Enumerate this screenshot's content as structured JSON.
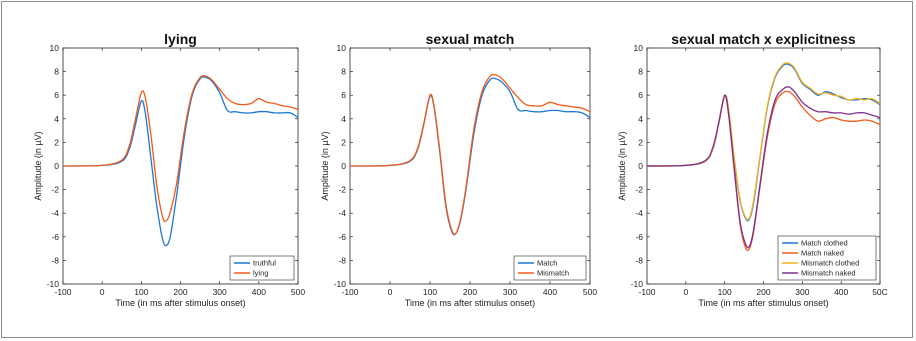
{
  "chart_data": [
    {
      "type": "line",
      "title": "lying",
      "xlabel": "Time (in ms after stimulus onset)",
      "ylabel": "Amplitude (in µV)",
      "xlim": [
        -100,
        500
      ],
      "ylim": [
        -10,
        10
      ],
      "xticks": [
        "-100",
        "0",
        "100",
        "200",
        "300",
        "400",
        "500"
      ],
      "yticks": [
        "-10",
        "-8",
        "-6",
        "-4",
        "-2",
        "0",
        "2",
        "4",
        "6",
        "8",
        "10"
      ],
      "legend_position": "bottom-right",
      "x": [
        -100,
        0,
        50,
        70,
        85,
        100,
        110,
        125,
        140,
        155,
        165,
        175,
        190,
        210,
        230,
        250,
        265,
        280,
        300,
        320,
        340,
        360,
        380,
        400,
        420,
        440,
        460,
        480,
        500
      ],
      "series": [
        {
          "name": "truthful",
          "color": "#1f77d4",
          "values": [
            0.0,
            0.05,
            0.4,
            1.5,
            3.5,
            5.5,
            4.5,
            0.5,
            -3.5,
            -6.3,
            -6.7,
            -5.8,
            -2.5,
            2.5,
            6.0,
            7.4,
            7.5,
            7.2,
            6.2,
            4.7,
            4.6,
            4.5,
            4.5,
            4.6,
            4.6,
            4.5,
            4.5,
            4.5,
            4.1
          ]
        },
        {
          "name": "lying",
          "color": "#f05a1a",
          "values": [
            0.0,
            0.05,
            0.5,
            1.8,
            4.0,
            6.2,
            5.8,
            2.5,
            -1.8,
            -4.4,
            -4.6,
            -3.8,
            -1.5,
            3.0,
            6.2,
            7.5,
            7.6,
            7.3,
            6.5,
            5.7,
            5.3,
            5.2,
            5.3,
            5.7,
            5.4,
            5.3,
            5.1,
            5.0,
            4.8
          ]
        }
      ]
    },
    {
      "type": "line",
      "title": "sexual match",
      "xlabel": "Time (in ms after stimulus onset)",
      "ylabel": "Amplitude (in µV)",
      "xlim": [
        -100,
        500
      ],
      "ylim": [
        -10,
        10
      ],
      "xticks": [
        "-100",
        "0",
        "100",
        "200",
        "300",
        "400",
        "500"
      ],
      "yticks": [
        "-10",
        "-8",
        "-6",
        "-4",
        "-2",
        "0",
        "2",
        "4",
        "6",
        "8",
        "10"
      ],
      "legend_position": "bottom-right",
      "x": [
        -100,
        0,
        50,
        70,
        85,
        100,
        110,
        125,
        140,
        155,
        165,
        175,
        190,
        210,
        230,
        250,
        265,
        280,
        300,
        320,
        340,
        360,
        380,
        400,
        420,
        440,
        460,
        480,
        500
      ],
      "series": [
        {
          "name": "Match",
          "color": "#1f77d4",
          "values": [
            0.0,
            0.05,
            0.4,
            1.5,
            3.6,
            5.9,
            5.0,
            1.0,
            -3.5,
            -5.6,
            -5.7,
            -4.8,
            -2.0,
            2.8,
            6.0,
            7.3,
            7.4,
            7.1,
            6.3,
            4.8,
            4.7,
            4.6,
            4.6,
            4.7,
            4.7,
            4.6,
            4.6,
            4.5,
            4.1
          ]
        },
        {
          "name": "Mismatch",
          "color": "#f05a1a",
          "values": [
            0.0,
            0.05,
            0.45,
            1.6,
            3.7,
            6.0,
            5.1,
            1.2,
            -3.3,
            -5.5,
            -5.7,
            -4.7,
            -1.8,
            3.2,
            6.3,
            7.6,
            7.7,
            7.4,
            6.6,
            5.8,
            5.2,
            5.1,
            5.1,
            5.4,
            5.2,
            5.1,
            5.0,
            4.9,
            4.6
          ]
        }
      ]
    },
    {
      "type": "line",
      "title": "sexual match x explicitness",
      "xlabel": "Time (in ms after stimulus onset)",
      "ylabel": "Amplitude (in µV)",
      "xlim": [
        -100,
        500
      ],
      "ylim": [
        -10,
        10
      ],
      "xticks": [
        "-100",
        "0",
        "100",
        "200",
        "300",
        "400",
        "50C"
      ],
      "yticks": [
        "-10",
        "-8",
        "-6",
        "-4",
        "-2",
        "0",
        "2",
        "4",
        "6",
        "8",
        "10"
      ],
      "legend_position": "bottom-right",
      "x": [
        -100,
        0,
        50,
        70,
        85,
        100,
        110,
        125,
        140,
        155,
        165,
        175,
        190,
        210,
        230,
        250,
        265,
        280,
        300,
        320,
        340,
        360,
        380,
        400,
        420,
        440,
        460,
        480,
        500
      ],
      "series": [
        {
          "name": "Match clothed",
          "color": "#1f77d4",
          "values": [
            0.0,
            0.05,
            0.4,
            1.5,
            3.6,
            5.9,
            4.8,
            0.5,
            -3.0,
            -4.5,
            -4.4,
            -3.0,
            0.5,
            5.0,
            7.5,
            8.5,
            8.6,
            8.2,
            7.0,
            6.5,
            6.0,
            6.3,
            6.1,
            5.8,
            5.6,
            5.6,
            5.7,
            5.6,
            5.2
          ]
        },
        {
          "name": "Match naked",
          "color": "#f05a1a",
          "values": [
            0.0,
            0.05,
            0.45,
            1.6,
            3.7,
            5.9,
            4.4,
            -0.5,
            -5.0,
            -7.0,
            -6.9,
            -5.5,
            -2.0,
            2.5,
            5.3,
            6.2,
            6.3,
            5.9,
            5.0,
            4.3,
            3.8,
            4.0,
            4.1,
            3.9,
            3.8,
            3.8,
            3.9,
            3.8,
            3.5
          ]
        },
        {
          "name": "Mismatch clothed",
          "color": "#f2b21b",
          "values": [
            0.0,
            0.05,
            0.4,
            1.5,
            3.6,
            5.9,
            4.9,
            0.6,
            -2.9,
            -4.4,
            -4.3,
            -2.8,
            0.6,
            5.1,
            7.6,
            8.6,
            8.7,
            8.3,
            7.1,
            6.6,
            6.1,
            6.2,
            6.0,
            5.9,
            5.6,
            5.7,
            5.6,
            5.7,
            5.3
          ]
        },
        {
          "name": "Mismatch naked",
          "color": "#7e2f8e",
          "values": [
            0.0,
            0.05,
            0.45,
            1.6,
            3.7,
            6.0,
            4.5,
            -0.3,
            -4.8,
            -6.7,
            -6.7,
            -5.3,
            -1.8,
            2.8,
            5.6,
            6.5,
            6.7,
            6.3,
            5.4,
            4.9,
            4.6,
            4.6,
            4.5,
            4.5,
            4.4,
            4.5,
            4.5,
            4.3,
            4.1
          ]
        }
      ]
    }
  ]
}
